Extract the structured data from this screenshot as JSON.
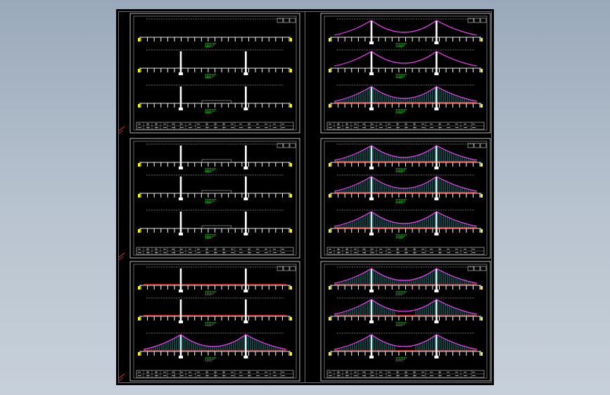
{
  "colors": {
    "canvas_bg": "#000000",
    "frame": "#ffffff",
    "deck": "#ff3030",
    "cable": "#ff40ff",
    "hangers": "#30e0e0",
    "note_text": "#30ff30",
    "abutment": "#ffff00",
    "margin_mark": "#ff3030"
  },
  "sheets": [
    {
      "id": "L1",
      "stages": [
        {
          "tower": false,
          "cable": false,
          "deck": false
        },
        {
          "tower": true,
          "cable": false,
          "deck": false
        },
        {
          "tower": true,
          "cable": false,
          "deck": false,
          "guide": true
        }
      ]
    },
    {
      "id": "L2",
      "stages": [
        {
          "tower": true,
          "cable": false,
          "deck": false,
          "guide": true
        },
        {
          "tower": true,
          "cable": false,
          "deck": false,
          "guide": true
        },
        {
          "tower": true,
          "cable": false,
          "deck": false,
          "guide": true
        }
      ]
    },
    {
      "id": "L3",
      "stages": [
        {
          "tower": true,
          "cable": false,
          "deck": true
        },
        {
          "tower": true,
          "cable": false,
          "deck": true
        },
        {
          "tower": true,
          "cable": true,
          "deck": true,
          "hangers": "full"
        }
      ]
    },
    {
      "id": "R1",
      "stages": [
        {
          "tower": true,
          "cable": true,
          "deck": false
        },
        {
          "tower": true,
          "cable": true,
          "deck": false
        },
        {
          "tower": true,
          "cable": true,
          "deck": true,
          "hangers": "full"
        }
      ]
    },
    {
      "id": "R2",
      "stages": [
        {
          "tower": true,
          "cable": true,
          "deck": true,
          "hangers": "full"
        },
        {
          "tower": true,
          "cable": true,
          "deck": true,
          "hangers": "full"
        },
        {
          "tower": true,
          "cable": true,
          "deck": true,
          "hangers": "full"
        }
      ]
    },
    {
      "id": "R3",
      "stages": [
        {
          "tower": true,
          "cable": true,
          "deck": true,
          "hangers": "full"
        },
        {
          "tower": true,
          "cable": true,
          "deck": true,
          "hangers": "partial"
        },
        {
          "tower": true,
          "cable": true,
          "deck": true,
          "hangers": "partial"
        }
      ]
    }
  ]
}
